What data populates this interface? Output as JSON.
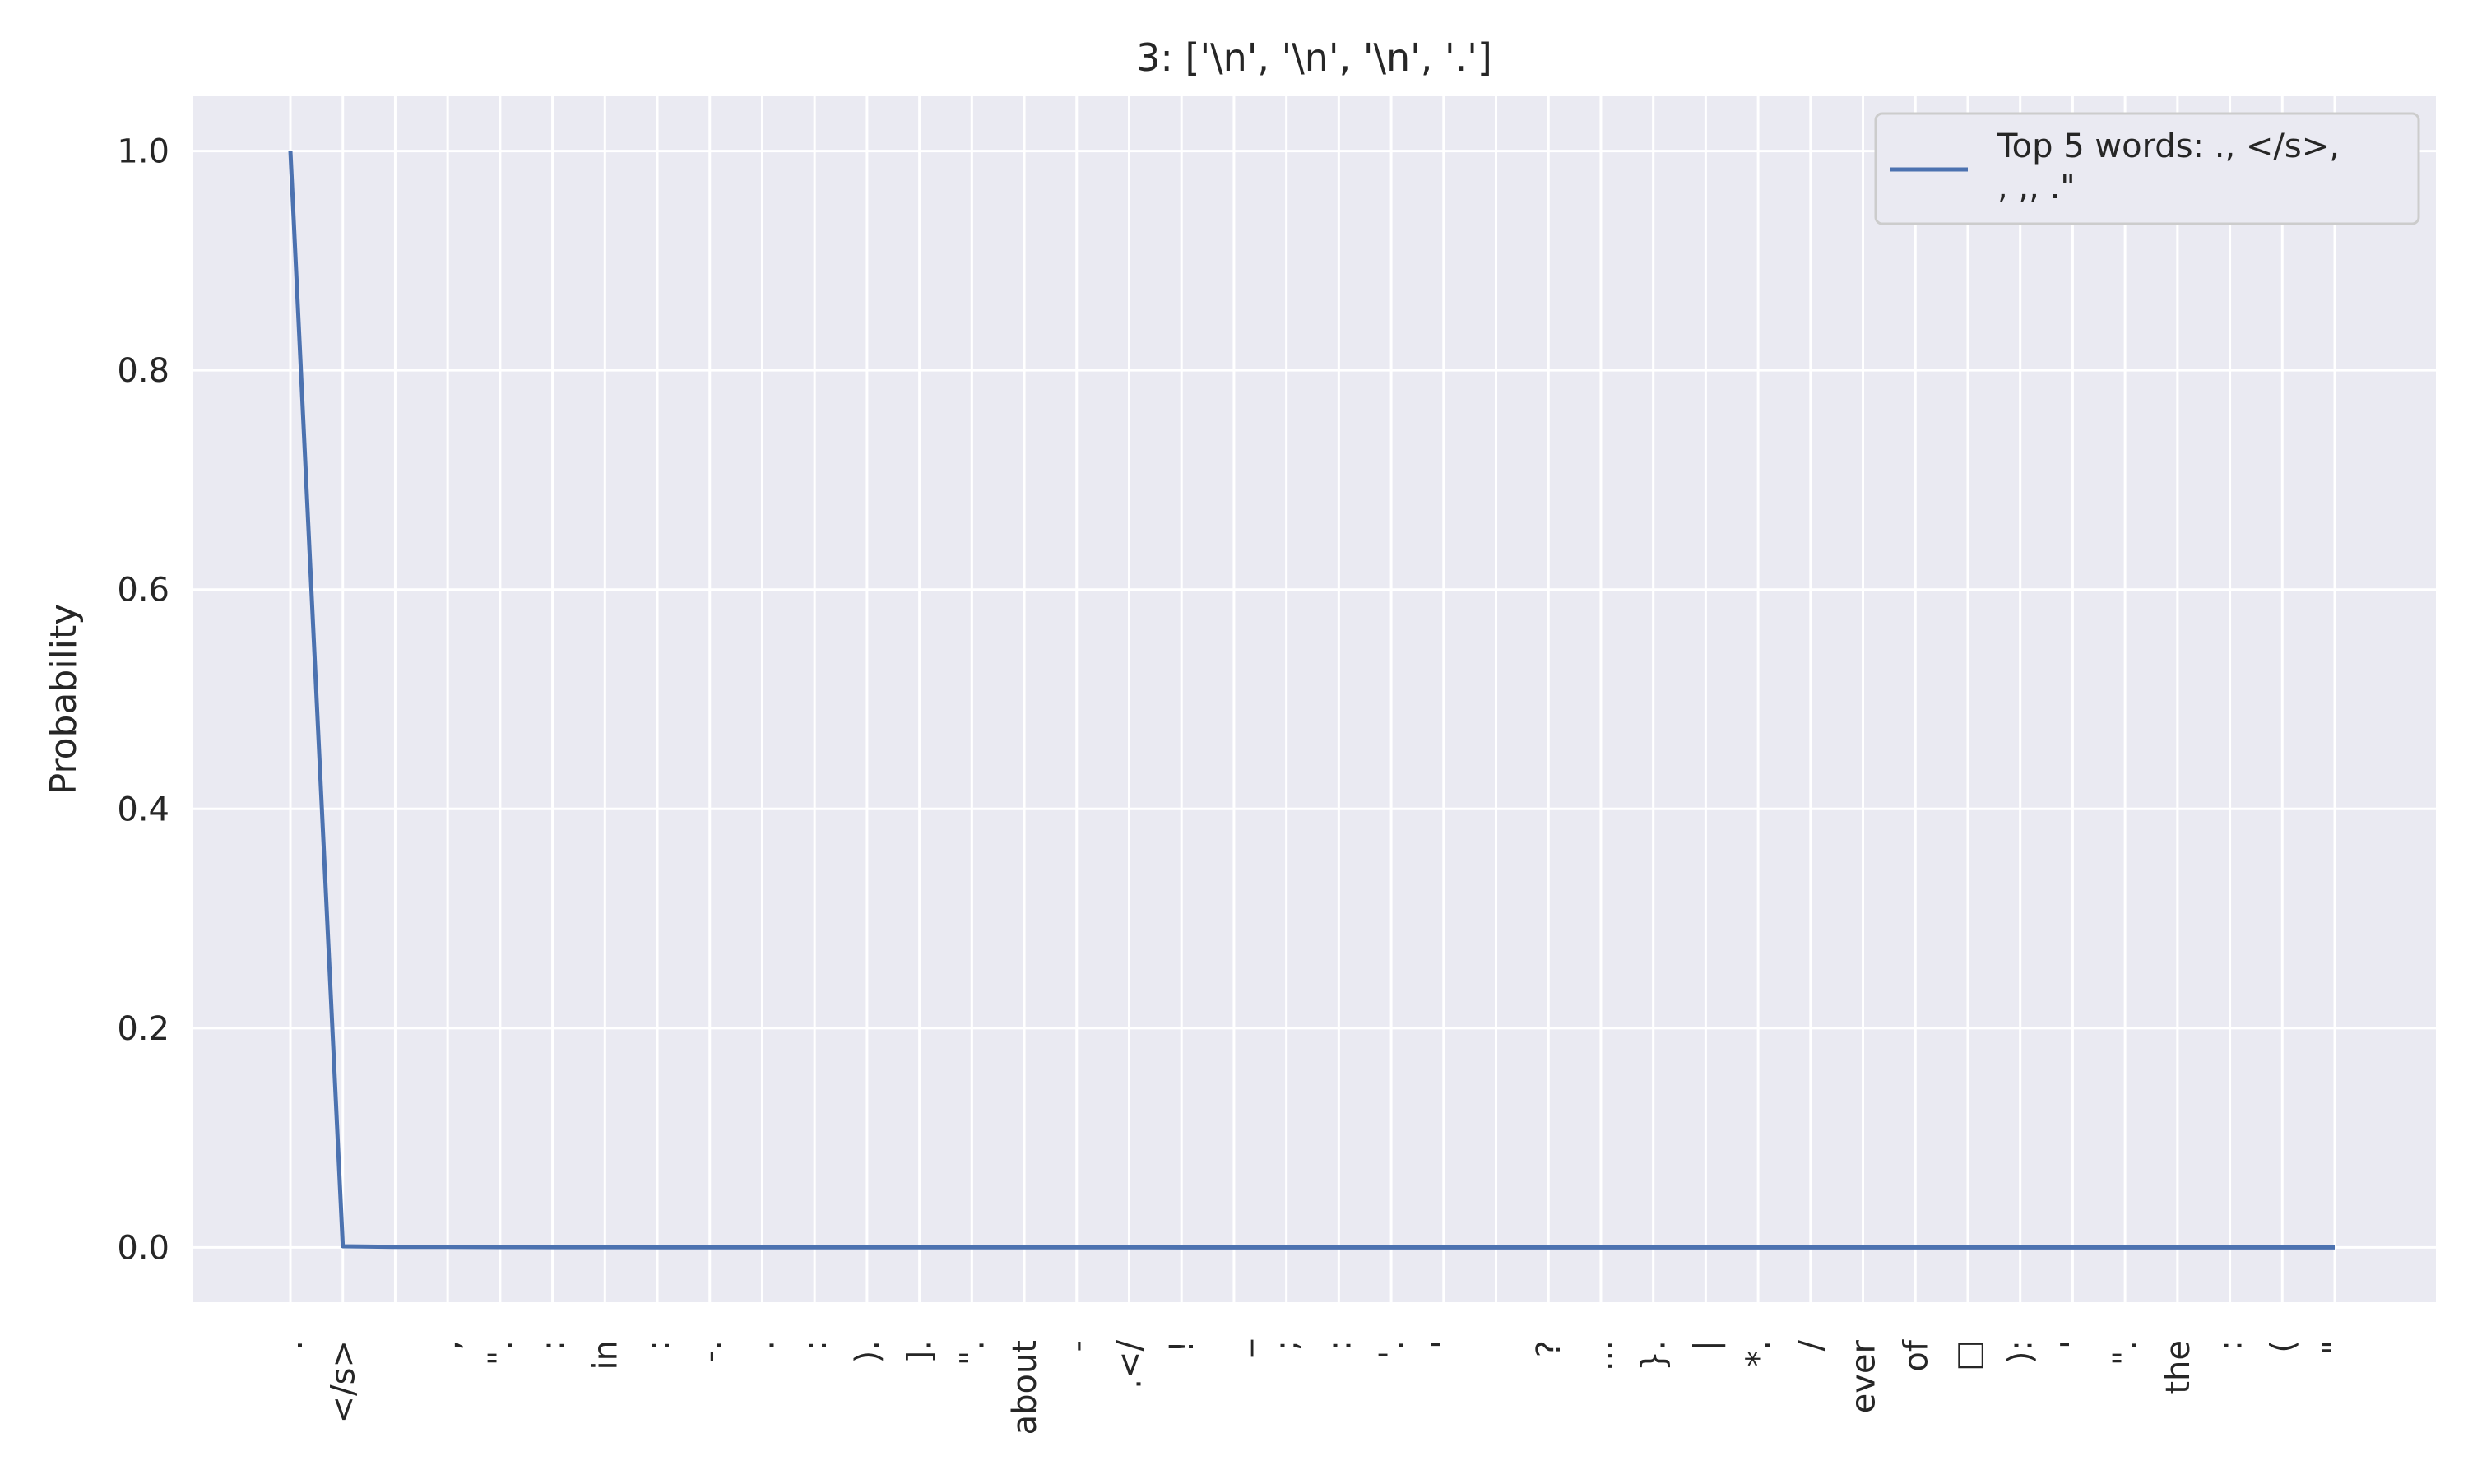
{
  "chart_data": {
    "type": "line",
    "title": "3: ['\\n', '\\n', '\\n', '.']",
    "xlabel": "",
    "ylabel": "Probability",
    "ylim": [
      -0.05,
      1.05
    ],
    "yticks": [
      "0.0",
      "0.2",
      "0.4",
      "0.6",
      "0.8",
      "1.0"
    ],
    "grid": true,
    "legend_position": "top-right",
    "categories": [
      ".",
      "</s>",
      "",
      ",",
      "\".",
      ":",
      "in",
      ":",
      "-.",
      ".",
      ":",
      ").",
      "].",
      "\".",
      "about",
      "-",
      ".</",
      "!",
      "_",
      ";",
      ":",
      "'.",
      "'",
      "",
      "?",
      "...",
      "}.",
      "|",
      "*.",
      "/",
      "ever",
      "of",
      "□",
      "):",
      "'",
      "\".",
      "the",
      ":",
      "(",
      "\""
    ],
    "series": [
      {
        "name": "Top 5 words: ., </s>,\n, ,, .\"",
        "color": "#4c72b0",
        "values": [
          1.0,
          0.001,
          0.0005,
          0.0004,
          0.0003,
          0.0002,
          0.0002,
          0.0001,
          0.0001,
          0.0001,
          0.0001,
          0.0001,
          0.0001,
          0.0001,
          0.0001,
          0.0001,
          0.0001,
          0.0,
          0.0,
          0.0,
          0.0,
          0.0,
          0.0,
          0.0,
          0.0,
          0.0,
          0.0,
          0.0,
          0.0,
          0.0,
          0.0,
          0.0,
          0.0,
          0.0,
          0.0,
          0.0,
          0.0,
          0.0,
          0.0,
          0.0
        ]
      }
    ],
    "legend_lines": [
      "Top 5 words: ., </s>,",
      ", ,, .\""
    ]
  },
  "colors": {
    "plot_background": "#eaeaf2",
    "grid": "#ffffff",
    "line": "#4c72b0"
  }
}
